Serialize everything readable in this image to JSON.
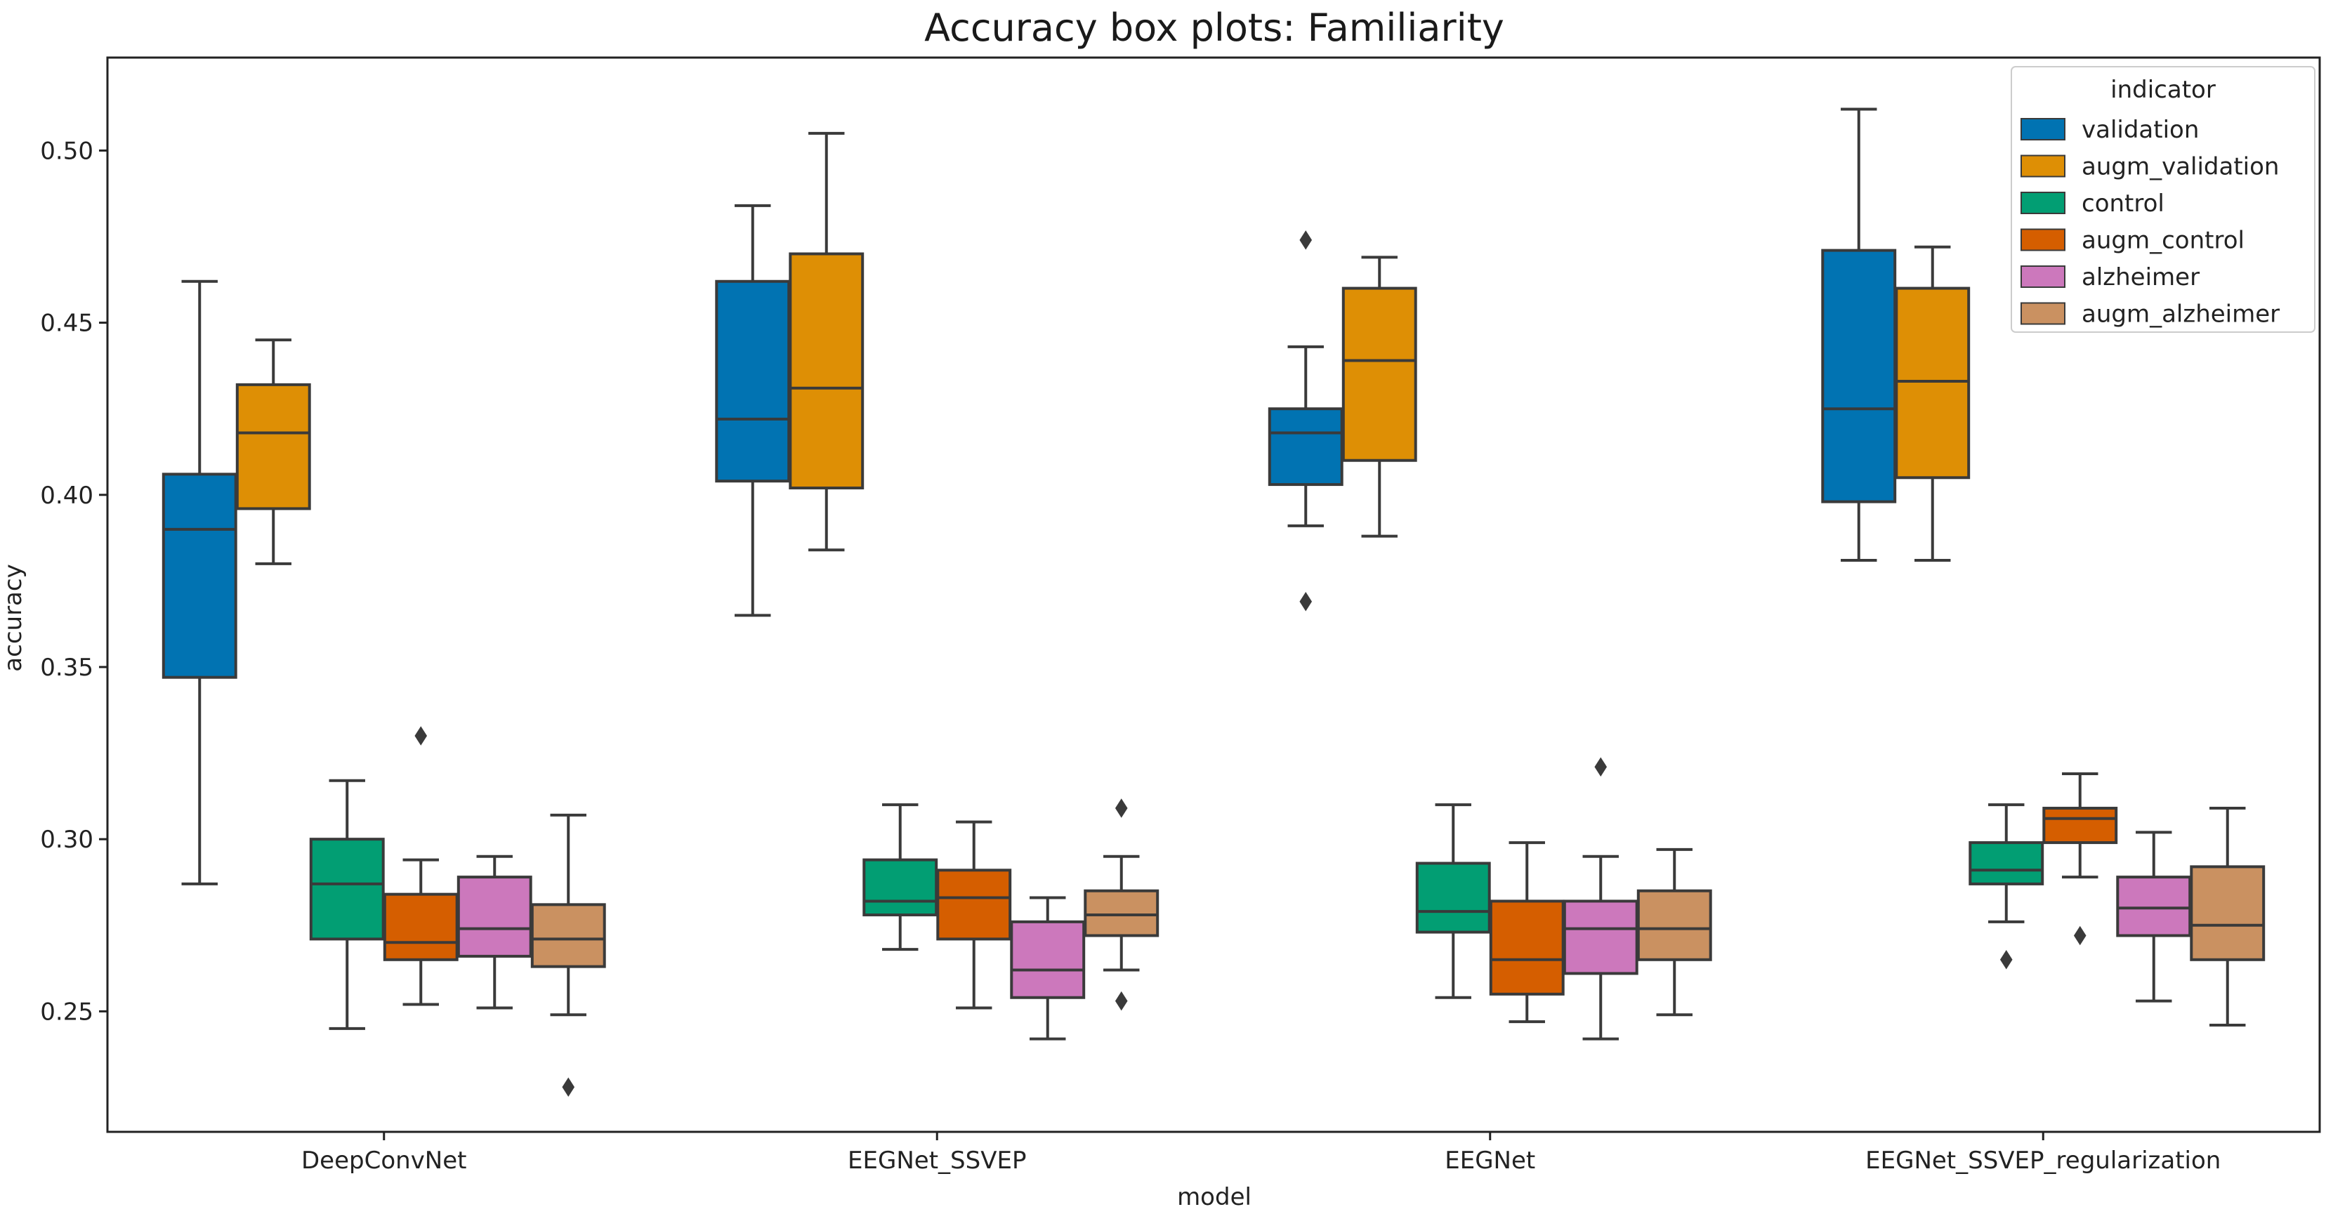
{
  "chart_data": {
    "type": "box",
    "title": "Accuracy box plots: Familiarity",
    "xlabel": "model",
    "ylabel": "accuracy",
    "ylim": [
      0.215,
      0.527
    ],
    "yticks": [
      0.25,
      0.3,
      0.35,
      0.4,
      0.45,
      0.5
    ],
    "ytick_labels": [
      "0.25",
      "0.30",
      "0.35",
      "0.40",
      "0.45",
      "0.50"
    ],
    "categories": [
      "DeepConvNet",
      "EEGNet_SSVEP",
      "EEGNet",
      "EEGNet_SSVEP_regularization"
    ],
    "legend": {
      "title": "indicator",
      "position": "top-right"
    },
    "series": [
      {
        "name": "validation",
        "color": "#0173b2",
        "boxes": [
          {
            "whislo": 0.287,
            "q1": 0.347,
            "med": 0.39,
            "q3": 0.406,
            "whishi": 0.462,
            "fliers": []
          },
          {
            "whislo": 0.365,
            "q1": 0.404,
            "med": 0.422,
            "q3": 0.462,
            "whishi": 0.484,
            "fliers": []
          },
          {
            "whislo": 0.391,
            "q1": 0.403,
            "med": 0.418,
            "q3": 0.425,
            "whishi": 0.443,
            "fliers": [
              0.474,
              0.369
            ]
          },
          {
            "whislo": 0.381,
            "q1": 0.398,
            "med": 0.425,
            "q3": 0.471,
            "whishi": 0.512,
            "fliers": []
          }
        ]
      },
      {
        "name": "augm_validation",
        "color": "#de8f05",
        "boxes": [
          {
            "whislo": 0.38,
            "q1": 0.396,
            "med": 0.418,
            "q3": 0.432,
            "whishi": 0.445,
            "fliers": []
          },
          {
            "whislo": 0.384,
            "q1": 0.402,
            "med": 0.431,
            "q3": 0.47,
            "whishi": 0.505,
            "fliers": []
          },
          {
            "whislo": 0.388,
            "q1": 0.41,
            "med": 0.439,
            "q3": 0.46,
            "whishi": 0.469,
            "fliers": []
          },
          {
            "whislo": 0.381,
            "q1": 0.405,
            "med": 0.433,
            "q3": 0.46,
            "whishi": 0.472,
            "fliers": []
          }
        ]
      },
      {
        "name": "control",
        "color": "#029e73",
        "boxes": [
          {
            "whislo": 0.245,
            "q1": 0.271,
            "med": 0.287,
            "q3": 0.3,
            "whishi": 0.317,
            "fliers": []
          },
          {
            "whislo": 0.268,
            "q1": 0.278,
            "med": 0.282,
            "q3": 0.294,
            "whishi": 0.31,
            "fliers": []
          },
          {
            "whislo": 0.254,
            "q1": 0.273,
            "med": 0.279,
            "q3": 0.293,
            "whishi": 0.31,
            "fliers": []
          },
          {
            "whislo": 0.276,
            "q1": 0.287,
            "med": 0.291,
            "q3": 0.299,
            "whishi": 0.31,
            "fliers": [
              0.265
            ]
          }
        ]
      },
      {
        "name": "augm_control",
        "color": "#d55e00",
        "boxes": [
          {
            "whislo": 0.252,
            "q1": 0.265,
            "med": 0.27,
            "q3": 0.284,
            "whishi": 0.294,
            "fliers": [
              0.33
            ]
          },
          {
            "whislo": 0.251,
            "q1": 0.271,
            "med": 0.283,
            "q3": 0.291,
            "whishi": 0.305,
            "fliers": []
          },
          {
            "whislo": 0.247,
            "q1": 0.255,
            "med": 0.265,
            "q3": 0.282,
            "whishi": 0.299,
            "fliers": []
          },
          {
            "whislo": 0.289,
            "q1": 0.299,
            "med": 0.306,
            "q3": 0.309,
            "whishi": 0.319,
            "fliers": [
              0.272
            ]
          }
        ]
      },
      {
        "name": "alzheimer",
        "color": "#cc78bc",
        "boxes": [
          {
            "whislo": 0.251,
            "q1": 0.266,
            "med": 0.274,
            "q3": 0.289,
            "whishi": 0.295,
            "fliers": []
          },
          {
            "whislo": 0.242,
            "q1": 0.254,
            "med": 0.262,
            "q3": 0.276,
            "whishi": 0.283,
            "fliers": []
          },
          {
            "whislo": 0.242,
            "q1": 0.261,
            "med": 0.274,
            "q3": 0.282,
            "whishi": 0.295,
            "fliers": [
              0.321
            ]
          },
          {
            "whislo": 0.253,
            "q1": 0.272,
            "med": 0.28,
            "q3": 0.289,
            "whishi": 0.302,
            "fliers": []
          }
        ]
      },
      {
        "name": "augm_alzheimer",
        "color": "#ca9161",
        "boxes": [
          {
            "whislo": 0.249,
            "q1": 0.263,
            "med": 0.271,
            "q3": 0.281,
            "whishi": 0.307,
            "fliers": [
              0.228
            ]
          },
          {
            "whislo": 0.262,
            "q1": 0.272,
            "med": 0.278,
            "q3": 0.285,
            "whishi": 0.295,
            "fliers": [
              0.309,
              0.253
            ]
          },
          {
            "whislo": 0.249,
            "q1": 0.265,
            "med": 0.274,
            "q3": 0.285,
            "whishi": 0.297,
            "fliers": []
          },
          {
            "whislo": 0.246,
            "q1": 0.265,
            "med": 0.275,
            "q3": 0.292,
            "whishi": 0.309,
            "fliers": []
          }
        ]
      }
    ]
  }
}
